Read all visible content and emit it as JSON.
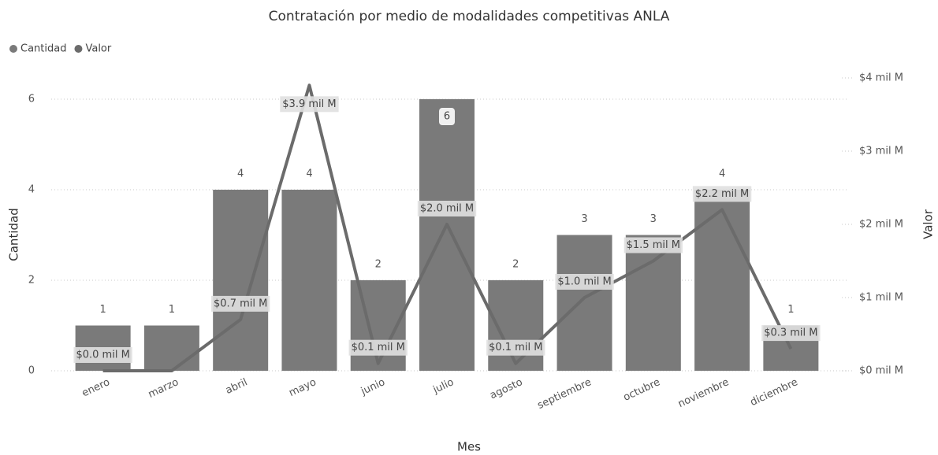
{
  "chart_data": {
    "type": "combo",
    "title": "Contratación por medio de modalidades competitivas ANLA",
    "x_label": "Mes",
    "y_label": "Cantidad",
    "y2_label": "Valor",
    "categories": [
      "enero",
      "marzo",
      "abril",
      "mayo",
      "junio",
      "julio",
      "agosto",
      "septiembre",
      "octubre",
      "noviembre",
      "diciembre"
    ],
    "series": [
      {
        "name": "Cantidad",
        "type": "bar",
        "color": "#7a7a7a",
        "values": [
          1,
          1,
          4,
          4,
          2,
          6,
          2,
          3,
          3,
          4,
          1
        ]
      },
      {
        "name": "Valor",
        "type": "line",
        "axis": "y2",
        "color": "#6b6b6b",
        "values": [
          0.0,
          0.0,
          0.7,
          3.9,
          0.1,
          2.0,
          0.1,
          1.0,
          1.5,
          2.2,
          0.3
        ],
        "value_labels": [
          "$0.0 mil M",
          null,
          "$0.7 mil M",
          "$3.9 mil M",
          "$0.1 mil M",
          "$2.0 mil M",
          "$0.1 mil M",
          "$1.0 mil M",
          "$1.5 mil M",
          "$2.2 mil M",
          "$0.3 mil M"
        ]
      }
    ],
    "ylim": [
      0,
      6.47
    ],
    "yticks": [
      0,
      2,
      4,
      6
    ],
    "y2lim": [
      0,
      4
    ],
    "y2ticks": [
      {
        "value": 0,
        "label": "$0 mil M"
      },
      {
        "value": 1,
        "label": "$1 mil M"
      },
      {
        "value": 2,
        "label": "$2 mil M"
      },
      {
        "value": 3,
        "label": "$3 mil M"
      },
      {
        "value": 4,
        "label": "$4 mil M"
      }
    ],
    "grid": true,
    "legend": "top-left"
  }
}
